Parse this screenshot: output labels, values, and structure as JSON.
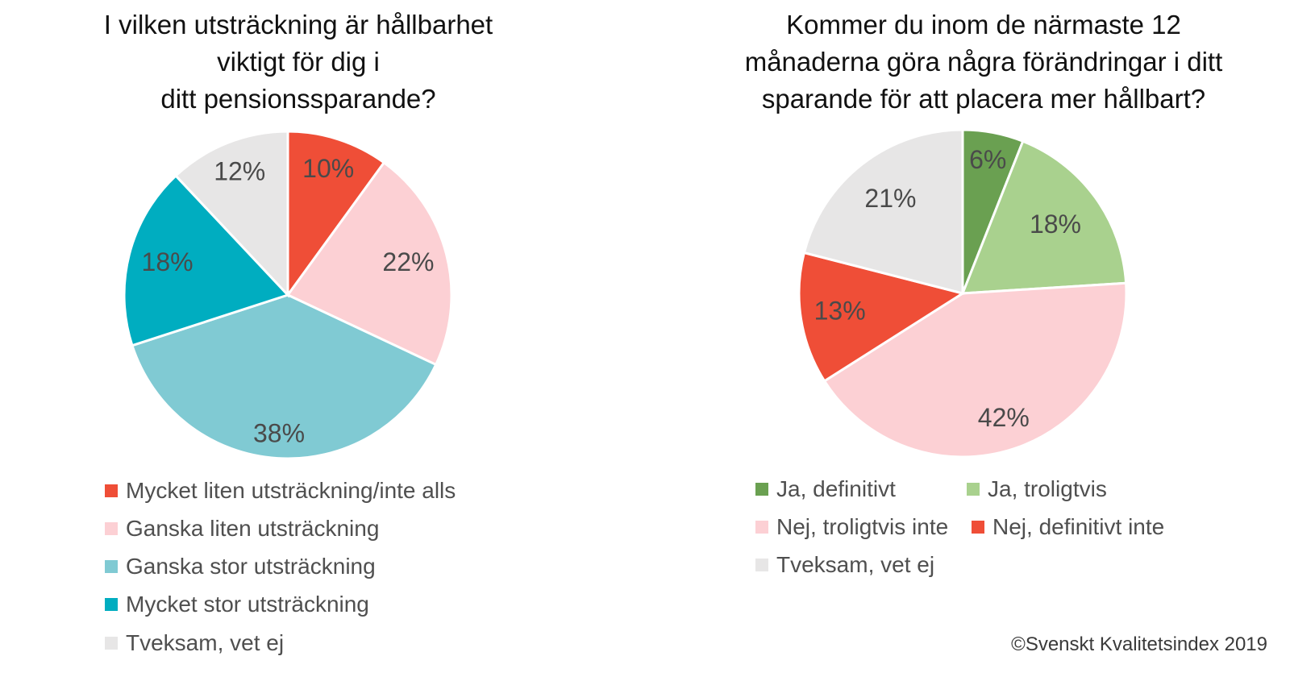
{
  "chart_data": [
    {
      "type": "pie",
      "title_lines": [
        "I vilken utsträckning är hållbarhet",
        "viktigt för dig i",
        "ditt pensionssparande?"
      ],
      "slices": [
        {
          "label": "Mycket liten utsträckning/inte alls",
          "value": 10,
          "display": "10%",
          "color": "#ef4e37"
        },
        {
          "label": "Ganska liten utsträckning",
          "value": 22,
          "display": "22%",
          "color": "#fcd0d4"
        },
        {
          "label": "Ganska stor utsträckning",
          "value": 38,
          "display": "38%",
          "color": "#80cad3"
        },
        {
          "label": "Mycket stor utsträckning",
          "value": 18,
          "display": "18%",
          "color": "#00adc0"
        },
        {
          "label": "Tveksam, vet ej",
          "value": 12,
          "display": "12%",
          "color": "#e7e6e6"
        }
      ],
      "legend_position": "bottom"
    },
    {
      "type": "pie",
      "title_lines": [
        "Kommer du inom de närmaste 12",
        "månaderna göra några förändringar i ditt",
        "sparande för att placera mer hållbart?"
      ],
      "slices": [
        {
          "label": "Ja, definitivt",
          "value": 6,
          "display": "6%",
          "color": "#6aa051"
        },
        {
          "label": "Ja, troligtvis",
          "value": 18,
          "display": "18%",
          "color": "#a9d18e"
        },
        {
          "label": "Nej, troligtvis inte",
          "value": 42,
          "display": "42%",
          "color": "#fcd0d4"
        },
        {
          "label": "Nej, definitivt inte",
          "value": 13,
          "display": "13%",
          "color": "#ef4e37"
        },
        {
          "label": "Tveksam, vet ej",
          "value": 21,
          "display": "21%",
          "color": "#e7e6e6"
        }
      ],
      "legend_position": "bottom"
    }
  ],
  "copyright": "©Svenskt Kvalitetsindex 2019"
}
